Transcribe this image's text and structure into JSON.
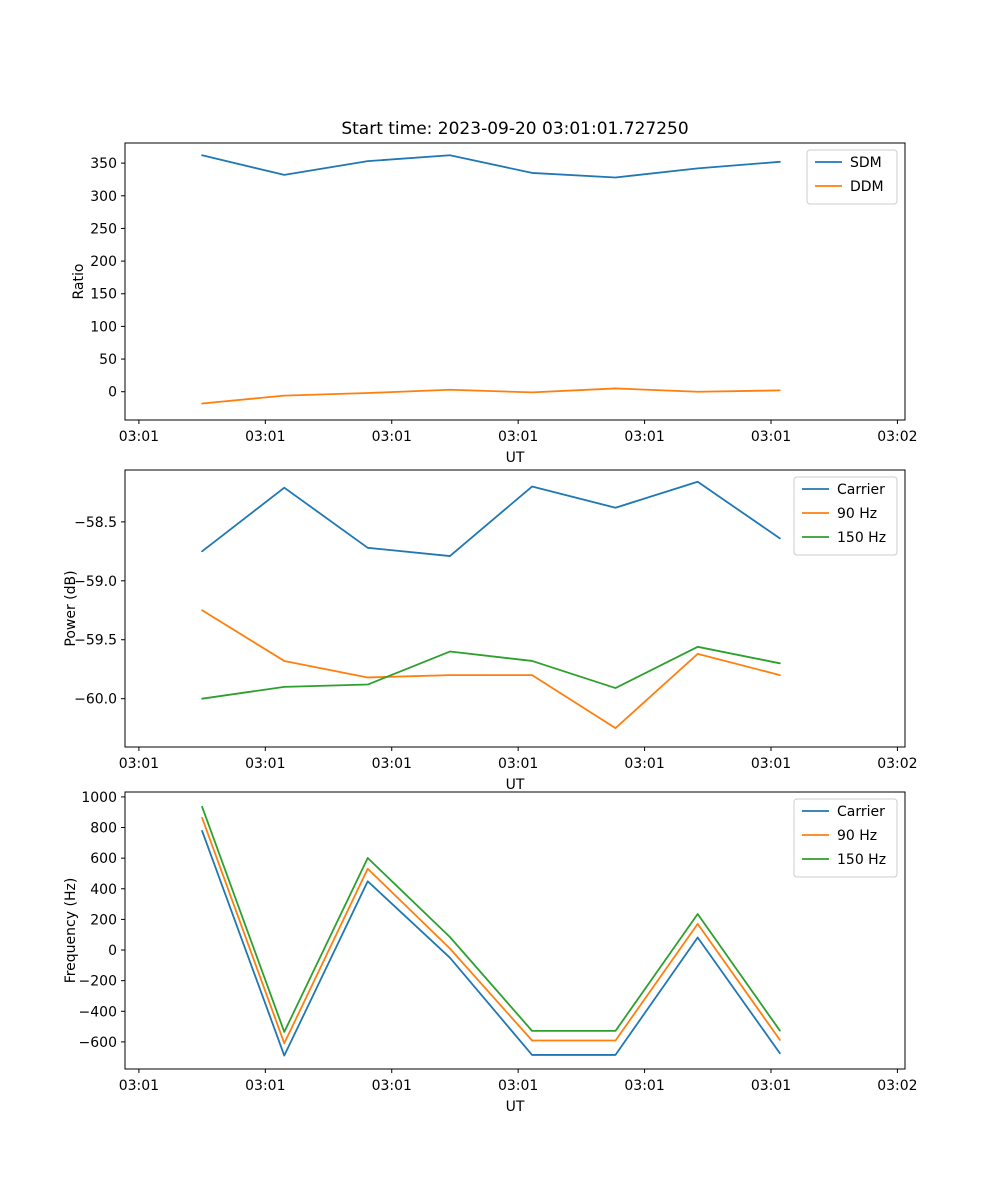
{
  "figure": {
    "title": "Start time: 2023-09-20 03:01:01.727250",
    "background": "#ffffff"
  },
  "palette": {
    "blue": "#1f77b4",
    "orange": "#ff7f0e",
    "green": "#2ca02c",
    "spine": "#000000",
    "legend_border": "#cccccc"
  },
  "chart_data": [
    {
      "type": "line",
      "title": "",
      "xlabel": "UT",
      "ylabel": "Ratio",
      "x_seconds_after_03_01_00": [
        5.0,
        11.5,
        18.1,
        24.6,
        31.1,
        37.7,
        44.2,
        50.7
      ],
      "xlim_seconds": [
        -1.1,
        60.6
      ],
      "xtick_seconds": [
        0,
        10,
        20,
        30,
        40,
        50,
        60
      ],
      "xtick_labels": [
        "03:01",
        "03:01",
        "03:01",
        "03:01",
        "03:01",
        "03:01",
        "03:02"
      ],
      "ylim": [
        -43.3,
        380.8
      ],
      "ytick_values": [
        0,
        50,
        100,
        150,
        200,
        250,
        300,
        350
      ],
      "ytick_labels": [
        "0",
        "50",
        "100",
        "150",
        "200",
        "250",
        "300",
        "350"
      ],
      "grid": false,
      "legend_position": "upper right",
      "series": [
        {
          "name": "SDM",
          "color": "#1f77b4",
          "values": [
            362,
            332,
            353,
            362,
            335,
            328,
            342,
            352
          ]
        },
        {
          "name": "DDM",
          "color": "#ff7f0e",
          "values": [
            -18,
            -6,
            -2,
            3,
            -1,
            5,
            0,
            2
          ]
        }
      ]
    },
    {
      "type": "line",
      "title": "",
      "xlabel": "UT",
      "ylabel": "Power (dB)",
      "x_seconds_after_03_01_00": [
        5.0,
        11.5,
        18.1,
        24.6,
        31.1,
        37.7,
        44.2,
        50.7
      ],
      "xlim_seconds": [
        -1.1,
        60.6
      ],
      "xtick_seconds": [
        0,
        10,
        20,
        30,
        40,
        50,
        60
      ],
      "xtick_labels": [
        "03:01",
        "03:01",
        "03:01",
        "03:01",
        "03:01",
        "03:01",
        "03:02"
      ],
      "ylim": [
        -60.41,
        -58.06
      ],
      "ytick_values": [
        -58.5,
        -59.0,
        -59.5,
        -60.0
      ],
      "ytick_labels": [
        "−58.5",
        "−59.0",
        "−59.5",
        "−60.0"
      ],
      "grid": false,
      "legend_position": "upper right",
      "series": [
        {
          "name": "Carrier",
          "color": "#1f77b4",
          "values": [
            -58.75,
            -58.21,
            -58.72,
            -58.79,
            -58.2,
            -58.38,
            -58.16,
            -58.64
          ]
        },
        {
          "name": "90 Hz",
          "color": "#ff7f0e",
          "values": [
            -59.25,
            -59.68,
            -59.82,
            -59.8,
            -59.8,
            -60.25,
            -59.62,
            -59.8
          ]
        },
        {
          "name": "150 Hz",
          "color": "#2ca02c",
          "values": [
            -60.0,
            -59.9,
            -59.88,
            -59.6,
            -59.68,
            -59.91,
            -59.56,
            -59.7
          ]
        }
      ]
    },
    {
      "type": "line",
      "title": "",
      "xlabel": "UT",
      "ylabel": "Frequency (Hz)",
      "x_seconds_after_03_01_00": [
        5.0,
        11.5,
        18.1,
        24.6,
        31.1,
        37.7,
        44.2,
        50.7
      ],
      "xlim_seconds": [
        -1.1,
        60.6
      ],
      "xtick_seconds": [
        0,
        10,
        20,
        30,
        40,
        50,
        60
      ],
      "xtick_labels": [
        "03:01",
        "03:01",
        "03:01",
        "03:01",
        "03:01",
        "03:01",
        "03:02"
      ],
      "ylim": [
        -777,
        1032
      ],
      "ytick_values": [
        1000,
        800,
        600,
        400,
        200,
        0,
        -200,
        -400,
        -600
      ],
      "ytick_labels": [
        "1000",
        "800",
        "600",
        "400",
        "200",
        "0",
        "−200",
        "−400",
        "−600"
      ],
      "grid": false,
      "legend_position": "upper right",
      "series": [
        {
          "name": "Carrier",
          "color": "#1f77b4",
          "values": [
            778,
            -689,
            449,
            -50,
            -685,
            -685,
            82,
            -674
          ]
        },
        {
          "name": "90 Hz",
          "color": "#ff7f0e",
          "values": [
            863,
            -609,
            531,
            10,
            -591,
            -591,
            171,
            -587
          ]
        },
        {
          "name": "150 Hz",
          "color": "#2ca02c",
          "values": [
            935,
            -535,
            601,
            85,
            -528,
            -528,
            235,
            -526
          ]
        }
      ]
    }
  ]
}
